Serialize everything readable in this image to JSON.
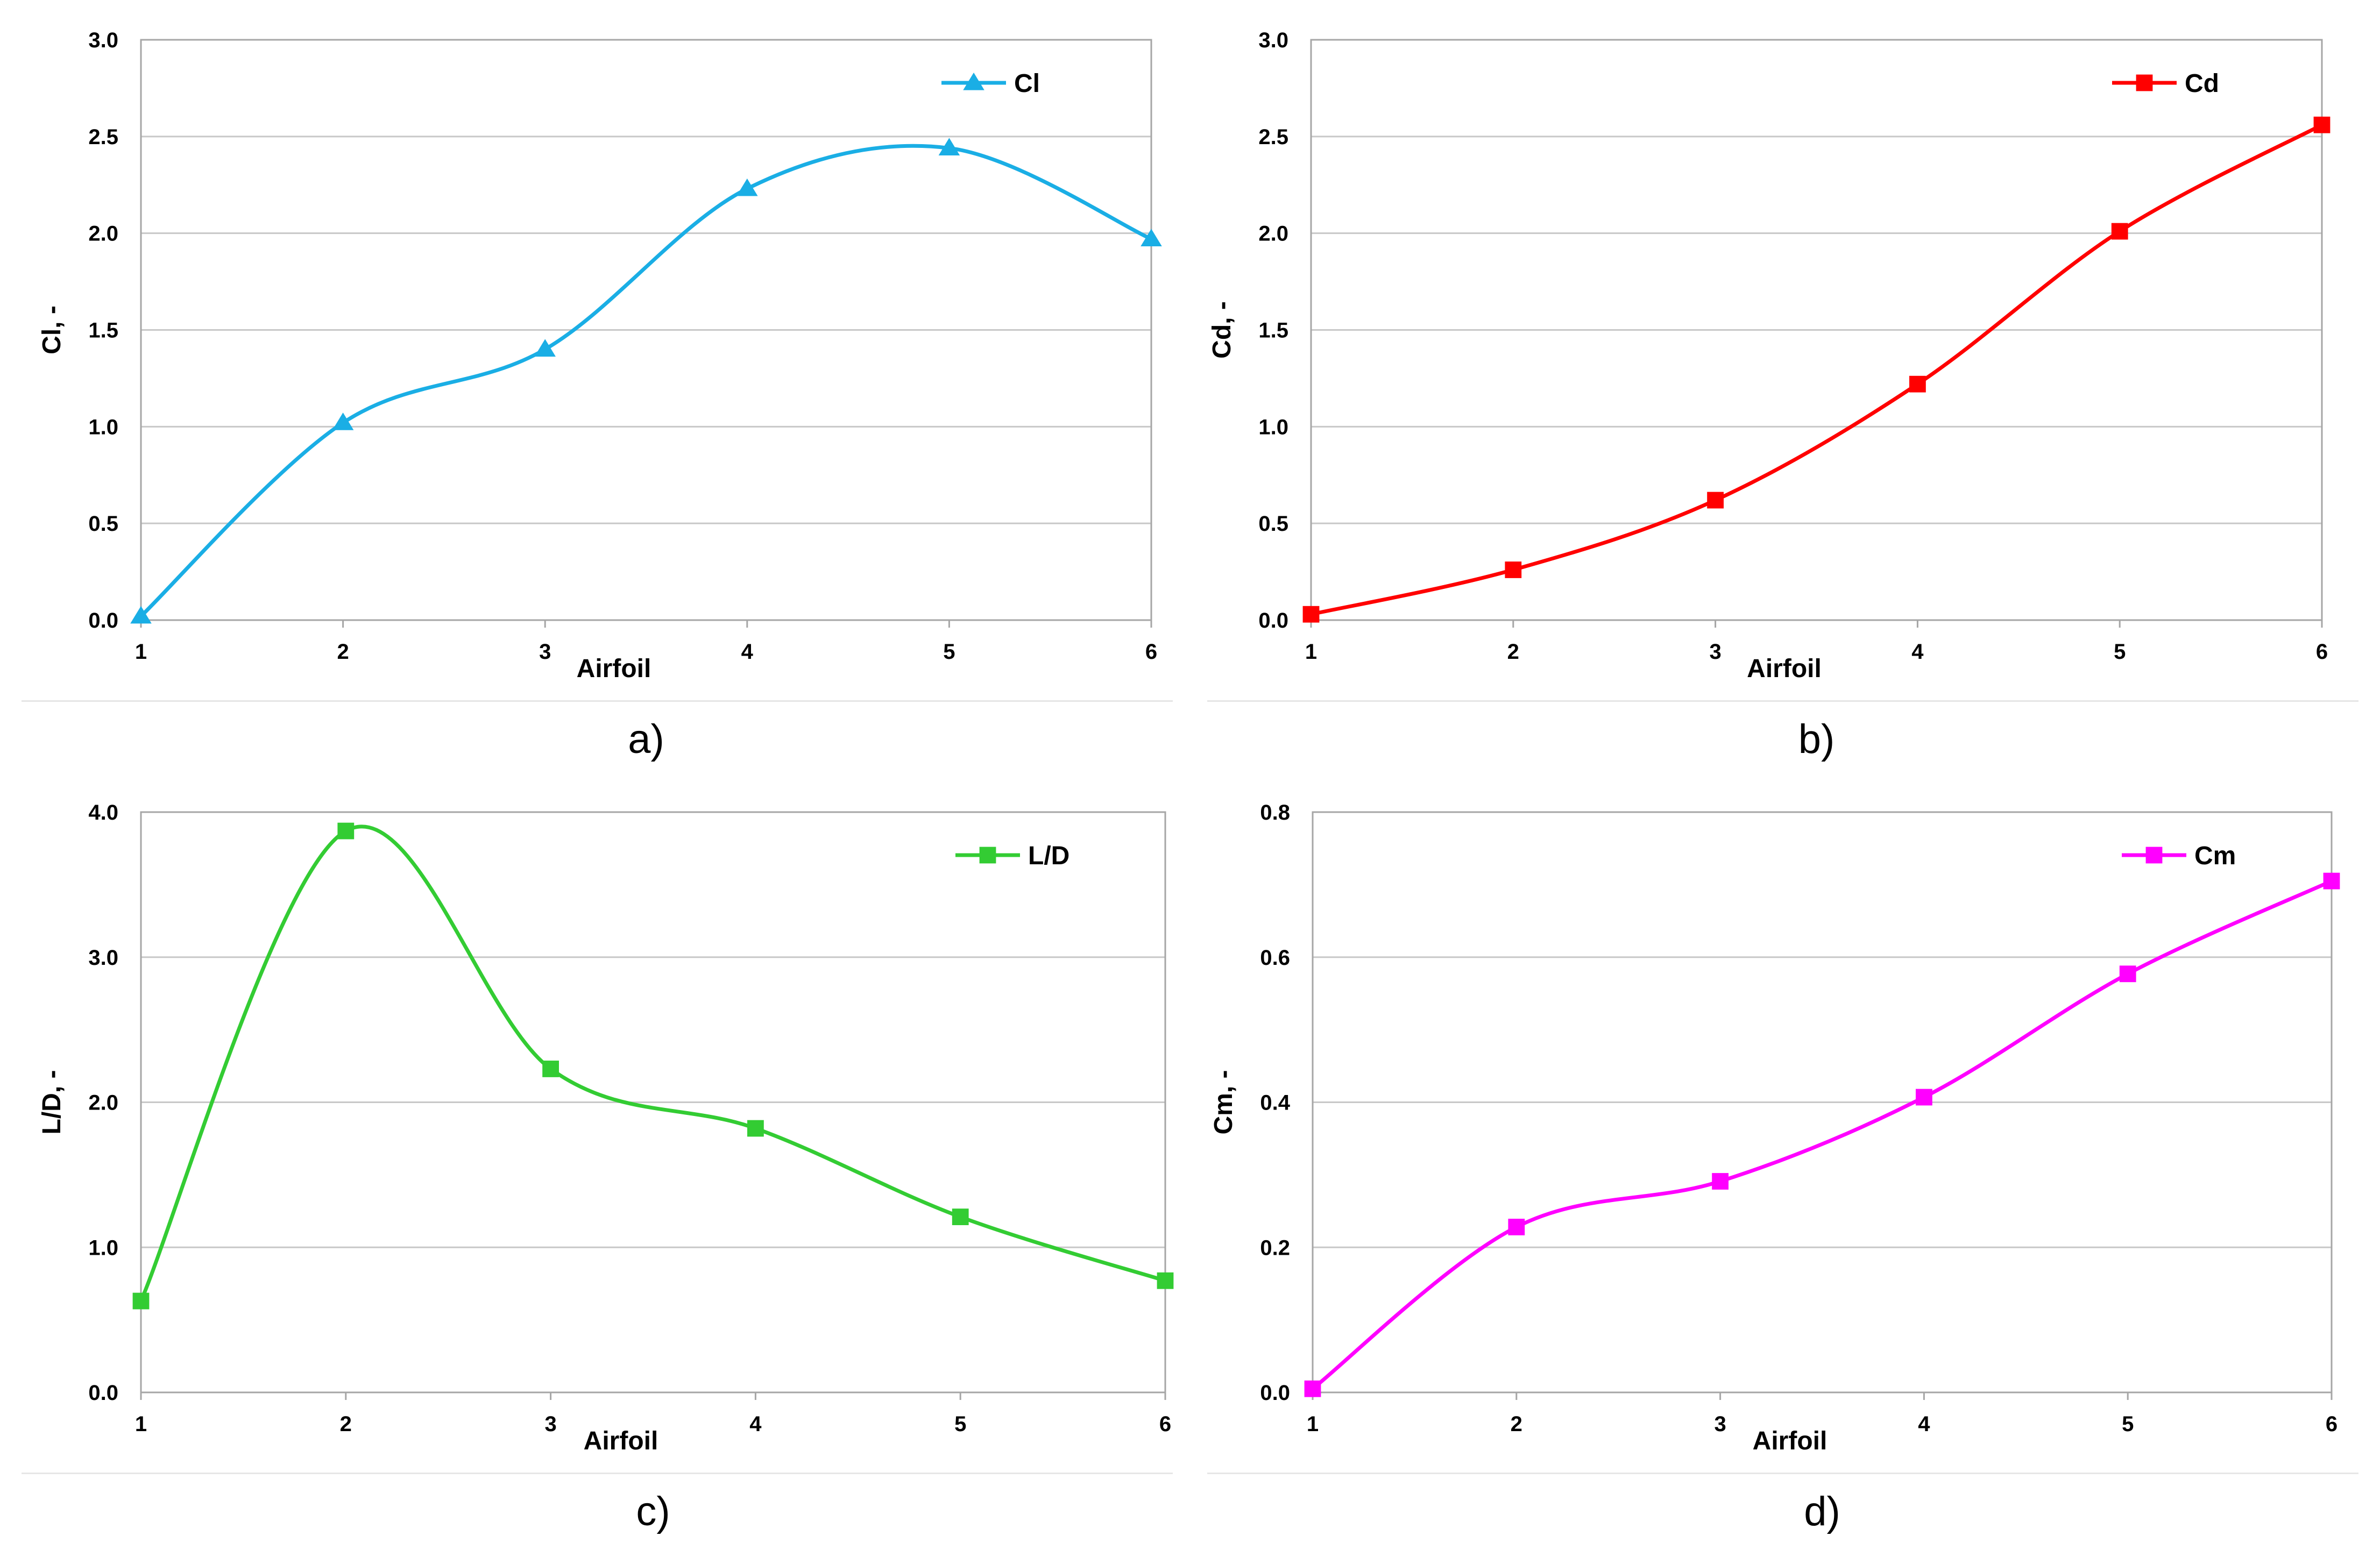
{
  "chart_data": [
    {
      "id": "a",
      "type": "line",
      "smooth": true,
      "caption": "a)",
      "xlabel": "Airfoil",
      "ylabel": "Cl, -",
      "categories": [
        "1",
        "2",
        "3",
        "4",
        "5",
        "6"
      ],
      "ylim": [
        0,
        3
      ],
      "yticks": [
        "0.0",
        "0.5",
        "1.0",
        "1.5",
        "2.0",
        "2.5",
        "3.0"
      ],
      "grid": true,
      "legend_position": "top-right",
      "series": [
        {
          "name": "Cl",
          "color": "#1aaee5",
          "marker": "triangle",
          "values": [
            0.02,
            1.02,
            1.4,
            2.23,
            2.44,
            1.97
          ]
        }
      ]
    },
    {
      "id": "b",
      "type": "line",
      "smooth": true,
      "caption": "b)",
      "xlabel": "Airfoil",
      "ylabel": "Cd, -",
      "categories": [
        "1",
        "2",
        "3",
        "4",
        "5",
        "6"
      ],
      "ylim": [
        0,
        3
      ],
      "yticks": [
        "0.0",
        "0.5",
        "1.0",
        "1.5",
        "2.0",
        "2.5",
        "3.0"
      ],
      "grid": true,
      "legend_position": "top-right",
      "series": [
        {
          "name": "Cd",
          "color": "#ff0000",
          "marker": "square",
          "values": [
            0.03,
            0.26,
            0.62,
            1.22,
            2.01,
            2.56
          ]
        }
      ]
    },
    {
      "id": "c",
      "type": "line",
      "smooth": true,
      "caption": "c)",
      "xlabel": "Airfoil",
      "ylabel": "L/D, -",
      "categories": [
        "1",
        "2",
        "3",
        "4",
        "5",
        "6"
      ],
      "ylim": [
        0,
        4
      ],
      "yticks": [
        "0.0",
        "1.0",
        "2.0",
        "3.0",
        "4.0"
      ],
      "grid": true,
      "legend_position": "top-right",
      "series": [
        {
          "name": "L/D",
          "color": "#33cc33",
          "marker": "square",
          "values": [
            0.63,
            3.87,
            2.23,
            1.82,
            1.21,
            0.77
          ]
        }
      ]
    },
    {
      "id": "d",
      "type": "line",
      "smooth": true,
      "caption": "d)",
      "xlabel": "Airfoil",
      "ylabel": "Cm, -",
      "categories": [
        "1",
        "2",
        "3",
        "4",
        "5",
        "6"
      ],
      "ylim": [
        0,
        0.8
      ],
      "yticks": [
        "0.0",
        "0.2",
        "0.4",
        "0.6",
        "0.8"
      ],
      "grid": true,
      "legend_position": "top-right",
      "series": [
        {
          "name": "Cm",
          "color": "#ff00ff",
          "marker": "square",
          "values": [
            0.005,
            0.228,
            0.291,
            0.407,
            0.577,
            0.705
          ]
        }
      ]
    }
  ]
}
